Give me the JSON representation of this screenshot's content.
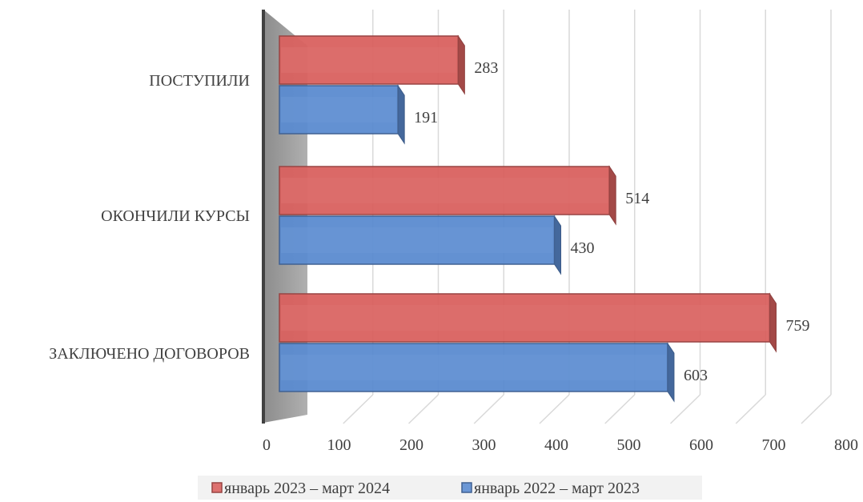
{
  "chart_data": {
    "type": "bar",
    "orientation": "horizontal",
    "style": "3d-clustered",
    "categories": [
      "ПОСТУПИЛИ",
      "ОКОНЧИЛИ КУРСЫ",
      "ЗАКЛЮЧЕНО ДОГОВОРОВ"
    ],
    "series": [
      {
        "name": "январь 2023 – март 2024",
        "values": [
          283,
          514,
          759
        ],
        "color": "#d9615f"
      },
      {
        "name": "январь 2022 – март 2023",
        "values": [
          191,
          430,
          603
        ],
        "color": "#5b8bd0"
      }
    ],
    "xlim": [
      0,
      800
    ],
    "ticks": [
      "0",
      "100",
      "200",
      "300",
      "400",
      "500",
      "600",
      "700",
      "800"
    ],
    "grid": true,
    "legend_position": "bottom",
    "data_labels": true
  }
}
